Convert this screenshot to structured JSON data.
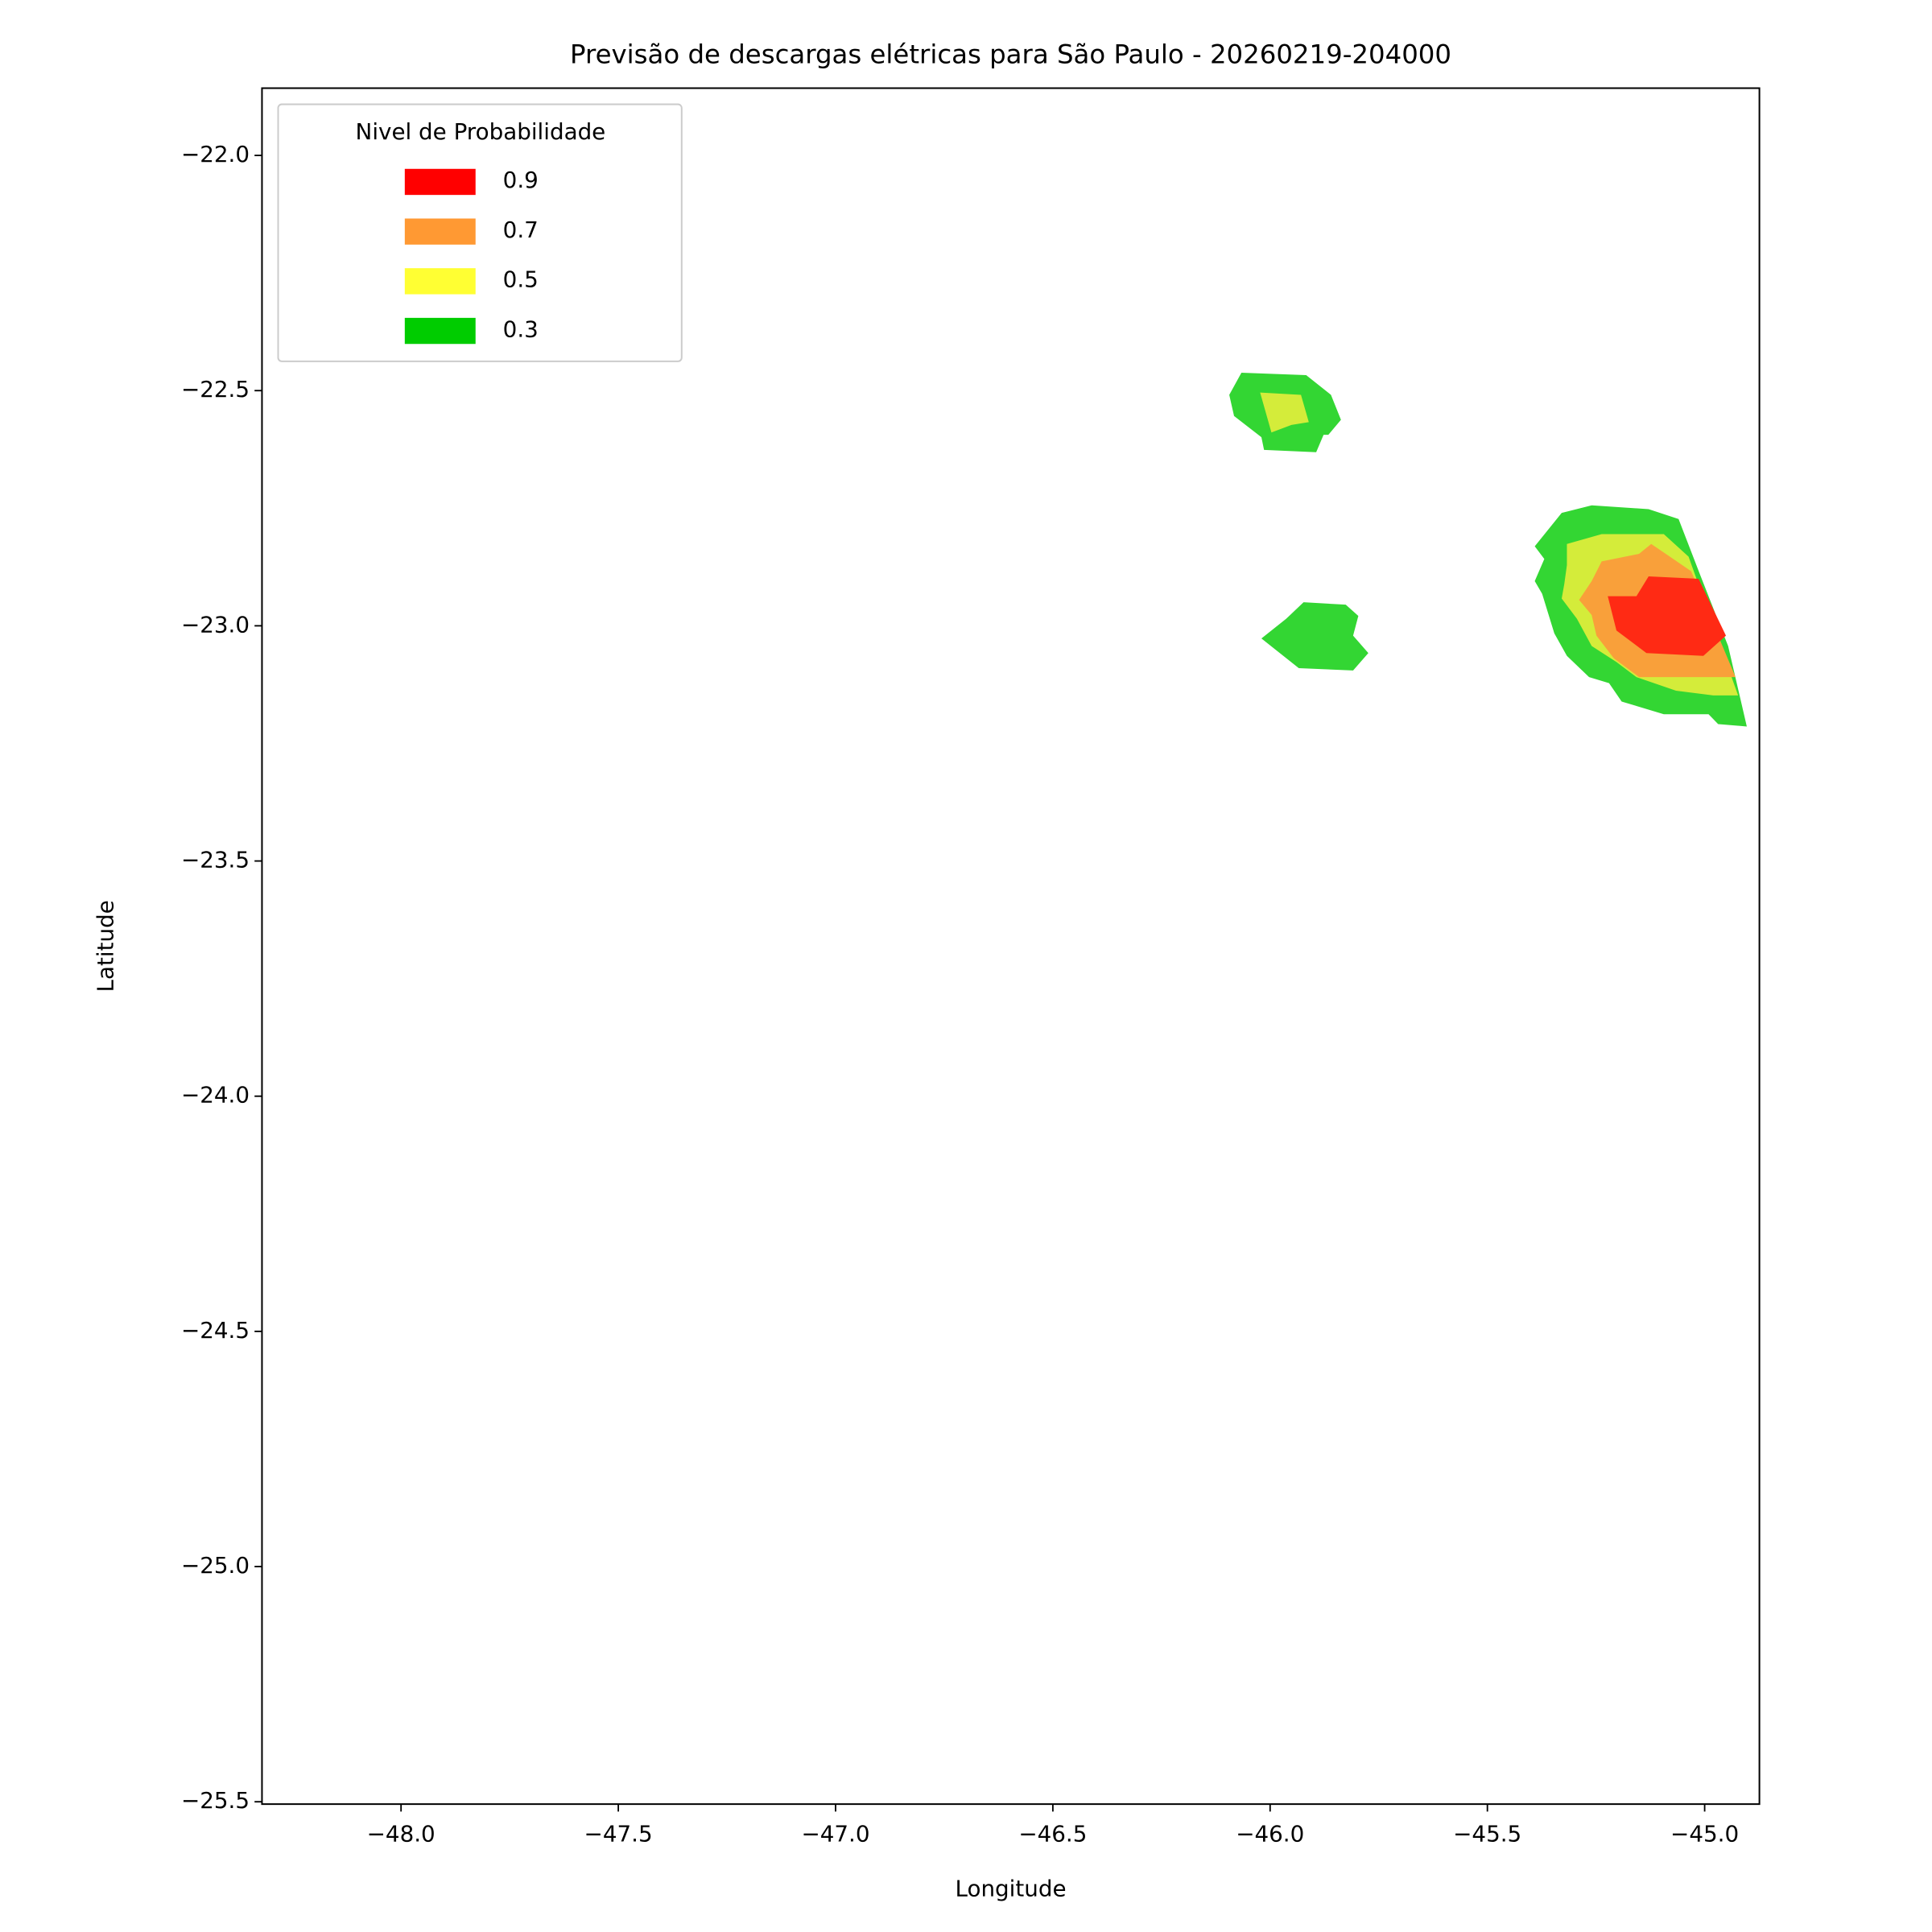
{
  "chart_data": {
    "type": "contour",
    "title": "Previsão de descargas elétricas para São Paulo - 20260219-204000",
    "xlabel": "Longitude",
    "ylabel": "Latitude",
    "xlim": [
      -48.32,
      -44.874
    ],
    "ylim": [
      -25.505,
      -21.857
    ],
    "xticks": [
      {
        "value": -48,
        "label": "−48.0"
      },
      {
        "value": -47.5,
        "label": "−47.5"
      },
      {
        "value": -47,
        "label": "−47.0"
      },
      {
        "value": -46.5,
        "label": "−46.5"
      },
      {
        "value": -46,
        "label": "−46.0"
      },
      {
        "value": -45.5,
        "label": "−45.5"
      },
      {
        "value": -45,
        "label": "−45.0"
      }
    ],
    "yticks": [
      {
        "value": -22,
        "label": "−22.0"
      },
      {
        "value": -22.5,
        "label": "−22.5"
      },
      {
        "value": -23,
        "label": "−23.0"
      },
      {
        "value": -23.5,
        "label": "−23.5"
      },
      {
        "value": -24,
        "label": "−24.0"
      },
      {
        "value": -24.5,
        "label": "−24.5"
      },
      {
        "value": -25,
        "label": "−25.0"
      },
      {
        "value": -25.5,
        "label": "−25.5"
      }
    ],
    "legend": {
      "title": "Nivel de Probabilidade",
      "corner": "upper left",
      "levels": [
        0.9,
        0.7,
        0.5,
        0.3
      ],
      "colors": [
        "#ff0000",
        "#ff9933",
        "#ffff33",
        "#00cc00"
      ]
    },
    "regions": [
      {
        "color": "#33d633",
        "lon": [
          -46.066,
          -45.917,
          -45.86,
          -45.837,
          -45.866,
          -45.877,
          -45.894,
          -46.014,
          -46.02,
          -46.083,
          -46.094
        ],
        "lat": [
          -22.462,
          -22.467,
          -22.509,
          -22.562,
          -22.594,
          -22.594,
          -22.631,
          -22.626,
          -22.599,
          -22.554,
          -22.509
        ]
      },
      {
        "color": "#d4ec3a",
        "lon": [
          -46.023,
          -45.929,
          -45.911,
          -45.951,
          -45.997
        ],
        "lat": [
          -22.504,
          -22.509,
          -22.567,
          -22.573,
          -22.589
        ]
      },
      {
        "color": "#33d633",
        "lon": [
          -45.923,
          -45.826,
          -45.797,
          -45.809,
          -45.774,
          -45.809,
          -45.934,
          -46.02,
          -45.963
        ],
        "lat": [
          -22.95,
          -22.955,
          -22.979,
          -23.021,
          -23.058,
          -23.095,
          -23.09,
          -23.027,
          -22.985
        ]
      },
      {
        "color": "#33d633",
        "lon": [
          -45.26,
          -45.129,
          -45.06,
          -45.009,
          -44.946,
          -44.903,
          -44.969,
          -44.991,
          -45.094,
          -45.191,
          -45.22,
          -45.266,
          -45.317,
          -45.346,
          -45.374,
          -45.391,
          -45.369,
          -45.391,
          -45.329
        ],
        "lat": [
          -22.744,
          -22.752,
          -22.773,
          -22.895,
          -23.043,
          -23.214,
          -23.209,
          -23.188,
          -23.188,
          -23.161,
          -23.122,
          -23.109,
          -23.064,
          -23.016,
          -22.932,
          -22.905,
          -22.858,
          -22.831,
          -22.76
        ]
      },
      {
        "color": "#d4ec3a",
        "lon": [
          -45.317,
          -45.237,
          -45.094,
          -45.037,
          -44.923,
          -44.98,
          -45.066,
          -45.157,
          -45.203,
          -45.26,
          -45.294,
          -45.329,
          -45.323,
          -45.317
        ],
        "lat": [
          -22.826,
          -22.805,
          -22.805,
          -22.853,
          -23.148,
          -23.148,
          -23.138,
          -23.109,
          -23.077,
          -23.043,
          -22.985,
          -22.942,
          -22.911,
          -22.871
        ]
      },
      {
        "color": "#f9a03a",
        "lon": [
          -45.237,
          -45.151,
          -45.123,
          -45.08,
          -45.031,
          -44.929,
          -45.151,
          -45.209,
          -45.249,
          -45.26,
          -45.289,
          -45.26
        ],
        "lat": [
          -22.863,
          -22.847,
          -22.826,
          -22.853,
          -22.884,
          -23.109,
          -23.109,
          -23.069,
          -23.021,
          -22.977,
          -22.945,
          -22.905
        ]
      },
      {
        "color": "#ff2a14",
        "lon": [
          -45.223,
          -45.157,
          -45.129,
          -45.014,
          -44.951,
          -45.003,
          -45.134,
          -45.203
        ],
        "lat": [
          -22.937,
          -22.937,
          -22.895,
          -22.9,
          -23.021,
          -23.064,
          -23.058,
          -23.01
        ]
      }
    ]
  }
}
